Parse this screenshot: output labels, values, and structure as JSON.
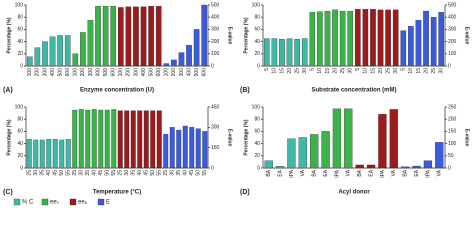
{
  "chart_data": [
    {
      "type": "bar",
      "panel_label": "(A)",
      "xlabel": "Enzyme concentration (U)",
      "ylabel": "Percentage (%)",
      "y2label": "E-value",
      "categories": [
        "100",
        "200",
        "300",
        "400",
        "500",
        "600",
        "100",
        "200",
        "300",
        "400",
        "500",
        "600",
        "100",
        "200",
        "300",
        "400",
        "500",
        "600",
        "100",
        "200",
        "300",
        "400",
        "500",
        "600"
      ],
      "ylim": [
        0,
        100
      ],
      "yticks": [
        0,
        20,
        40,
        60,
        80,
        100
      ],
      "y2lim": [
        0,
        500
      ],
      "y2ticks": [
        0,
        100,
        200,
        300,
        400,
        500
      ],
      "series": [
        {
          "name": "% C",
          "color": "#3fb8a8",
          "values": [
            15,
            30,
            40,
            48,
            50,
            50,
            null,
            null,
            null,
            null,
            null,
            null,
            null,
            null,
            null,
            null,
            null,
            null,
            null,
            null,
            null,
            null,
            null,
            null
          ]
        },
        {
          "name": "eeₛ",
          "color": "#3cb24a",
          "values": [
            null,
            null,
            null,
            null,
            null,
            null,
            20,
            55,
            75,
            98,
            98,
            98,
            null,
            null,
            null,
            null,
            null,
            null,
            null,
            null,
            null,
            null,
            null,
            null
          ]
        },
        {
          "name": "eeₚ",
          "color": "#9b1c1c",
          "values": [
            null,
            null,
            null,
            null,
            null,
            null,
            null,
            null,
            null,
            null,
            null,
            null,
            96,
            97,
            97,
            97,
            98,
            98,
            null,
            null,
            null,
            null,
            null,
            null
          ]
        },
        {
          "name": "E",
          "color": "#3b5bdb",
          "axis": "y2",
          "values": [
            null,
            null,
            null,
            null,
            null,
            null,
            null,
            null,
            null,
            null,
            null,
            null,
            null,
            null,
            null,
            null,
            null,
            null,
            20,
            50,
            110,
            170,
            300,
            500
          ]
        }
      ]
    },
    {
      "type": "bar",
      "panel_label": "(B)",
      "xlabel": "Substrate concentration (mM)",
      "ylabel": "Percentage (%)",
      "y2label": "E-value",
      "categories": [
        "5",
        "10",
        "15",
        "20",
        "25",
        "30",
        "5",
        "10",
        "15",
        "20",
        "25",
        "30",
        "5",
        "10",
        "15",
        "20",
        "25",
        "30",
        "5",
        "10",
        "15",
        "20",
        "25",
        "30"
      ],
      "ylim": [
        0,
        100
      ],
      "yticks": [
        0,
        20,
        40,
        60,
        80,
        100
      ],
      "y2lim": [
        0,
        500
      ],
      "y2ticks": [
        0,
        100,
        200,
        300,
        400,
        500
      ],
      "series": [
        {
          "name": "% C",
          "color": "#3fb8a8",
          "values": [
            45,
            45,
            44,
            45,
            44,
            45,
            null,
            null,
            null,
            null,
            null,
            null,
            null,
            null,
            null,
            null,
            null,
            null,
            null,
            null,
            null,
            null,
            null,
            null
          ]
        },
        {
          "name": "eeₛ",
          "color": "#3cb24a",
          "values": [
            null,
            null,
            null,
            null,
            null,
            null,
            88,
            89,
            90,
            92,
            90,
            90,
            null,
            null,
            null,
            null,
            null,
            null,
            null,
            null,
            null,
            null,
            null,
            null
          ]
        },
        {
          "name": "eeₚ",
          "color": "#9b1c1c",
          "values": [
            null,
            null,
            null,
            null,
            null,
            null,
            null,
            null,
            null,
            null,
            null,
            null,
            93,
            93,
            93,
            92,
            92,
            92,
            null,
            null,
            null,
            null,
            null,
            null
          ]
        },
        {
          "name": "E",
          "color": "#3b5bdb",
          "axis": "y2",
          "values": [
            null,
            null,
            null,
            null,
            null,
            null,
            null,
            null,
            null,
            null,
            null,
            null,
            null,
            null,
            null,
            null,
            null,
            null,
            290,
            325,
            375,
            450,
            400,
            440
          ]
        }
      ]
    },
    {
      "type": "bar",
      "panel_label": "(C)",
      "xlabel": "Temperature (°C)",
      "ylabel": "Percentage (%)",
      "y2label": "E-value",
      "categories": [
        "25",
        "30",
        "35",
        "40",
        "45",
        "50",
        "55",
        "25",
        "30",
        "35",
        "40",
        "45",
        "50",
        "55",
        "25",
        "30",
        "35",
        "40",
        "45",
        "50",
        "55",
        "25",
        "30",
        "35",
        "40",
        "45",
        "50",
        "55"
      ],
      "ylim": [
        0,
        100
      ],
      "yticks": [
        0,
        20,
        40,
        60,
        80,
        100
      ],
      "y2lim": [
        0,
        450
      ],
      "y2ticks": [
        0,
        150,
        300,
        450
      ],
      "series": [
        {
          "name": "% C",
          "color": "#3fb8a8",
          "values": [
            47,
            46,
            46,
            47,
            47,
            46,
            47,
            null,
            null,
            null,
            null,
            null,
            null,
            null,
            null,
            null,
            null,
            null,
            null,
            null,
            null,
            null,
            null,
            null,
            null,
            null,
            null,
            null
          ]
        },
        {
          "name": "eeₛ",
          "color": "#3cb24a",
          "values": [
            null,
            null,
            null,
            null,
            null,
            null,
            null,
            95,
            96,
            95,
            96,
            95,
            95,
            96,
            null,
            null,
            null,
            null,
            null,
            null,
            null,
            null,
            null,
            null,
            null,
            null,
            null,
            null
          ]
        },
        {
          "name": "eeₚ",
          "color": "#9b1c1c",
          "values": [
            null,
            null,
            null,
            null,
            null,
            null,
            null,
            null,
            null,
            null,
            null,
            null,
            null,
            null,
            94,
            94,
            94,
            94,
            94,
            94,
            94,
            null,
            null,
            null,
            null,
            null,
            null,
            null
          ]
        },
        {
          "name": "E",
          "color": "#3b5bdb",
          "axis": "y2",
          "values": [
            null,
            null,
            null,
            null,
            null,
            null,
            null,
            null,
            null,
            null,
            null,
            null,
            null,
            null,
            null,
            null,
            null,
            null,
            null,
            null,
            null,
            250,
            300,
            280,
            310,
            300,
            290,
            270
          ]
        }
      ]
    },
    {
      "type": "bar",
      "panel_label": "(D)",
      "xlabel": "Acyl donor",
      "ylabel": "Percentage (%)",
      "y2label": "E-value",
      "categories": [
        "BA",
        "EA",
        "IPA",
        "VA",
        "BA",
        "EA",
        "IPA",
        "VA",
        "BA",
        "EA",
        "IPA",
        "VA",
        "BA",
        "EA",
        "IPA",
        "VA"
      ],
      "ylim": [
        0,
        100
      ],
      "yticks": [
        0,
        20,
        40,
        60,
        80,
        100
      ],
      "y2lim": [
        0,
        250
      ],
      "y2ticks": [
        0,
        50,
        100,
        150,
        200,
        250
      ],
      "series": [
        {
          "name": "% C",
          "color": "#3fb8a8",
          "values": [
            12,
            3,
            48,
            50,
            null,
            null,
            null,
            null,
            null,
            null,
            null,
            null,
            null,
            null,
            null,
            null
          ]
        },
        {
          "name": "eeₛ",
          "color": "#3cb24a",
          "values": [
            null,
            null,
            null,
            null,
            55,
            60,
            97,
            97,
            null,
            null,
            null,
            null,
            null,
            null,
            null,
            null
          ]
        },
        {
          "name": "eeₚ",
          "color": "#9b1c1c",
          "values": [
            null,
            null,
            null,
            null,
            null,
            null,
            null,
            null,
            5,
            5,
            88,
            96,
            null,
            null,
            null,
            null
          ]
        },
        {
          "name": "E",
          "color": "#3b5bdb",
          "axis": "y2",
          "values": [
            null,
            null,
            null,
            null,
            null,
            null,
            null,
            null,
            null,
            null,
            null,
            null,
            5,
            8,
            30,
            105
          ]
        }
      ]
    }
  ]
}
